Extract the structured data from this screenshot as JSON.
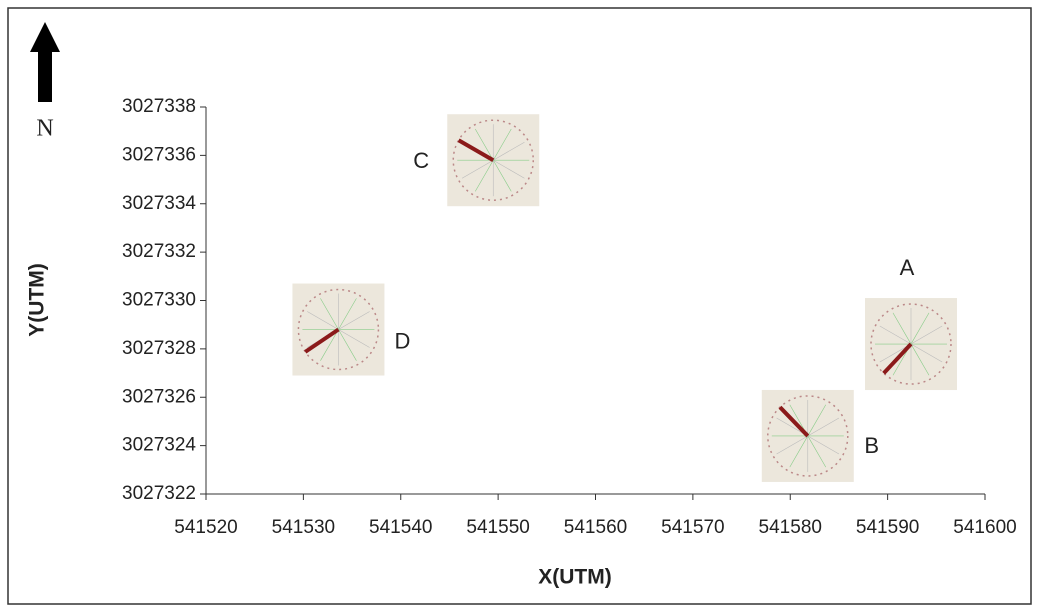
{
  "chart_data": {
    "type": "scatter",
    "x_label": "X(UTM)",
    "y_label": "Y(UTM)",
    "north_label": "N",
    "series": [
      {
        "names": [
          "A",
          "B",
          "C",
          "D"
        ],
        "x": [
          541592.4,
          541581.8,
          541549.5,
          541533.6
        ],
        "values": [
          3027328.2,
          3027324.4,
          3027335.8,
          3027328.8
        ],
        "mean_direction": [
          223,
          316,
          300,
          236
        ],
        "color": "#8b1a1a",
        "inset_color": "#ece7dc"
      }
    ],
    "xlim": [
      541520,
      541600
    ],
    "xticks": [
      541520,
      541530,
      541540,
      541550,
      541560,
      541570,
      541580,
      541590,
      541600
    ],
    "ylim": [
      3027322,
      3027338
    ],
    "yticks": [
      3027322,
      3027324,
      3027326,
      3027328,
      3027330,
      3027332,
      3027334,
      3027336,
      3027338
    ]
  }
}
